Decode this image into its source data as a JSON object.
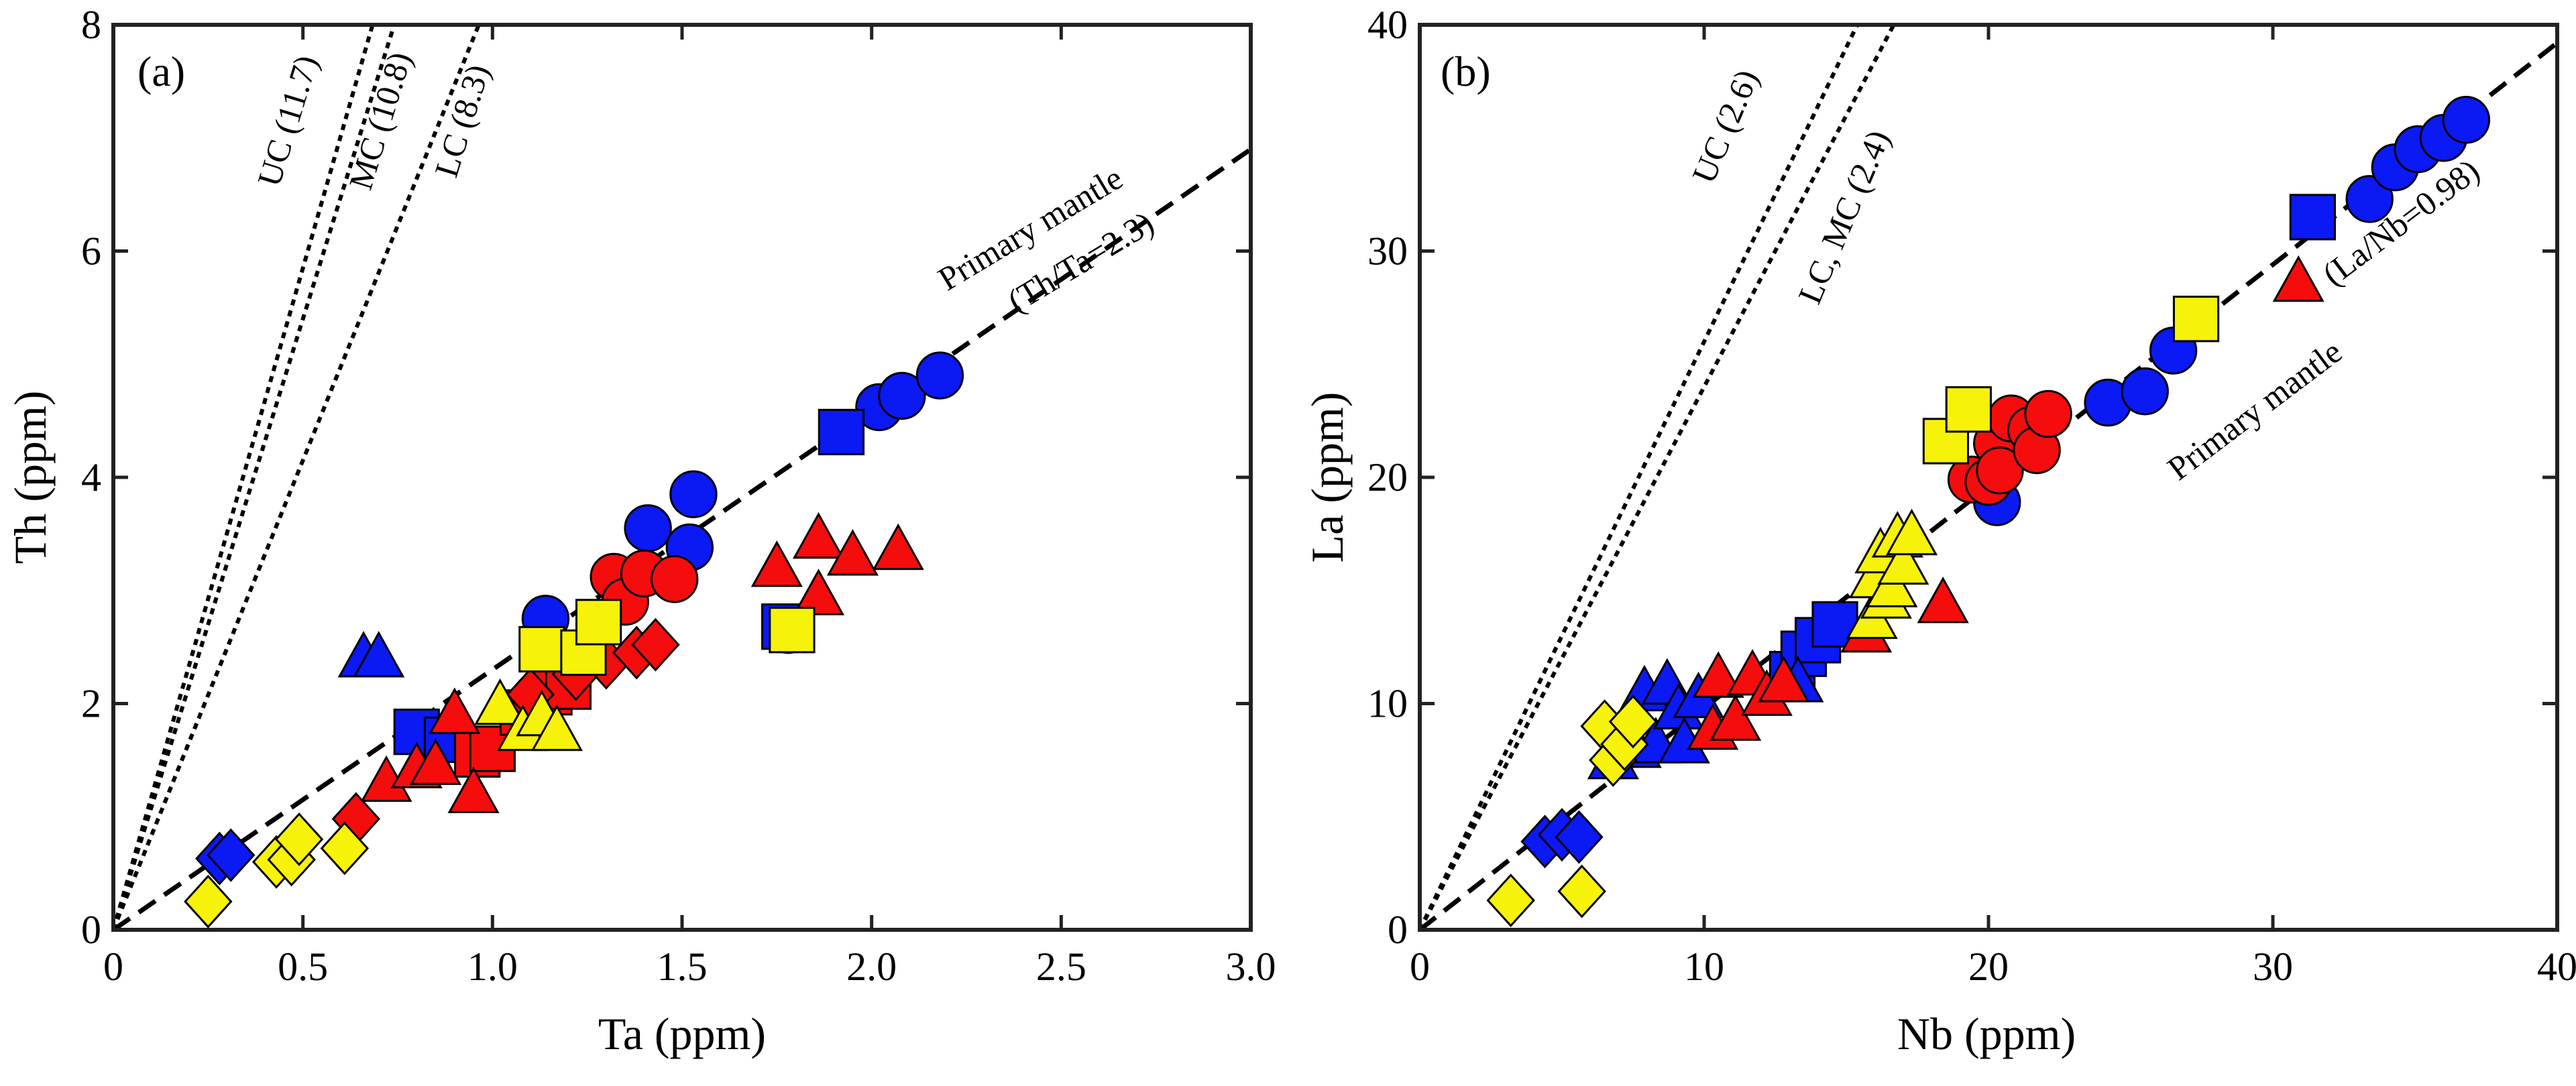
{
  "colors": {
    "blue": "#0b19f5",
    "red": "#f50d0d",
    "yellow": "#f7f20a",
    "outline": "#000000"
  },
  "chart_data": [
    {
      "type": "scatter",
      "panel_label": "(a)",
      "xlabel": "Ta (ppm)",
      "ylabel": "Th (ppm)",
      "xlim": [
        0,
        3.0
      ],
      "ylim": [
        0,
        8
      ],
      "xticks": [
        0,
        0.5,
        1.0,
        1.5,
        2.0,
        2.5,
        3.0
      ],
      "xtick_labels": [
        "0",
        "0.5",
        "1.0",
        "1.5",
        "2.0",
        "2.5",
        "3.0"
      ],
      "yticks": [
        0,
        2,
        4,
        6,
        8
      ],
      "ytick_labels": [
        "0",
        "2",
        "4",
        "6",
        "8"
      ],
      "grid": false,
      "reference_lines": [
        {
          "label": "UC (11.7)",
          "slope": 11.7,
          "style": "dotted"
        },
        {
          "label": "MC (10.8)",
          "slope": 10.8,
          "style": "dotted"
        },
        {
          "label": "LC (8.3)",
          "slope": 8.3,
          "style": "dotted"
        },
        {
          "label": "Primary mantle",
          "label2": "(Th/Ta=2.3)",
          "slope": 2.3,
          "style": "dashed"
        }
      ],
      "series": [
        {
          "marker": "circle",
          "color": "blue",
          "points": [
            [
              1.14,
              2.75
            ],
            [
              1.41,
              3.55
            ],
            [
              1.53,
              3.85
            ],
            [
              1.52,
              3.38
            ],
            [
              1.78,
              2.65
            ],
            [
              2.02,
              4.62
            ],
            [
              2.08,
              4.72
            ],
            [
              2.18,
              4.9
            ]
          ]
        },
        {
          "marker": "square",
          "color": "blue",
          "points": [
            [
              0.8,
              1.75
            ],
            [
              0.88,
              1.68
            ],
            [
              1.77,
              2.68
            ],
            [
              1.92,
              4.4
            ]
          ]
        },
        {
          "marker": "triangle",
          "color": "blue",
          "points": [
            [
              0.66,
              2.4
            ],
            [
              0.7,
              2.4
            ]
          ]
        },
        {
          "marker": "diamond",
          "color": "blue",
          "points": [
            [
              0.28,
              0.63
            ],
            [
              0.31,
              0.66
            ]
          ]
        },
        {
          "marker": "circle",
          "color": "red",
          "points": [
            [
              1.32,
              3.12
            ],
            [
              1.35,
              2.9
            ],
            [
              1.4,
              3.15
            ],
            [
              1.48,
              3.1
            ]
          ]
        },
        {
          "marker": "square",
          "color": "red",
          "points": [
            [
              0.96,
              1.55
            ],
            [
              1.0,
              1.6
            ],
            [
              1.08,
              1.92
            ],
            [
              1.15,
              2.1
            ],
            [
              1.2,
              2.15
            ]
          ]
        },
        {
          "marker": "triangle",
          "color": "red",
          "points": [
            [
              0.72,
              1.3
            ],
            [
              0.8,
              1.42
            ],
            [
              0.85,
              1.45
            ],
            [
              0.9,
              1.9
            ],
            [
              0.95,
              1.2
            ],
            [
              1.75,
              3.2
            ],
            [
              1.86,
              3.45
            ],
            [
              1.86,
              2.95
            ],
            [
              1.95,
              3.3
            ],
            [
              2.07,
              3.35
            ]
          ]
        },
        {
          "marker": "diamond",
          "color": "red",
          "points": [
            [
              0.64,
              0.98
            ],
            [
              1.1,
              2.08
            ],
            [
              1.22,
              2.26
            ],
            [
              1.3,
              2.36
            ],
            [
              1.38,
              2.45
            ],
            [
              1.43,
              2.52
            ]
          ]
        },
        {
          "marker": "square",
          "color": "yellow",
          "points": [
            [
              1.13,
              2.48
            ],
            [
              1.24,
              2.45
            ],
            [
              1.28,
              2.72
            ],
            [
              1.79,
              2.65
            ]
          ]
        },
        {
          "marker": "triangle",
          "color": "yellow",
          "points": [
            [
              1.02,
              1.98
            ],
            [
              1.08,
              1.75
            ],
            [
              1.13,
              1.88
            ],
            [
              1.17,
              1.75
            ]
          ]
        },
        {
          "marker": "diamond",
          "color": "yellow",
          "points": [
            [
              0.25,
              0.25
            ],
            [
              0.43,
              0.6
            ],
            [
              0.47,
              0.62
            ],
            [
              0.49,
              0.8
            ],
            [
              0.61,
              0.72
            ]
          ]
        }
      ]
    },
    {
      "type": "scatter",
      "panel_label": "(b)",
      "xlabel": "Nb (ppm)",
      "ylabel": "La (ppm)",
      "xlim": [
        0,
        40
      ],
      "ylim": [
        0,
        40
      ],
      "xticks": [
        0,
        10,
        20,
        30,
        40
      ],
      "xtick_labels": [
        "0",
        "10",
        "20",
        "30",
        "40"
      ],
      "yticks": [
        0,
        10,
        20,
        30,
        40
      ],
      "ytick_labels": [
        "0",
        "10",
        "20",
        "30",
        "40"
      ],
      "grid": false,
      "reference_lines": [
        {
          "label": "UC (2.6)",
          "slope": 2.6,
          "style": "dotted"
        },
        {
          "label": "LC, MC (2.4)",
          "slope": 2.4,
          "style": "dotted"
        },
        {
          "label": "Primary mantle",
          "label2": "(La/Nb=0.98)",
          "slope": 0.98,
          "style": "dashed"
        }
      ],
      "series": [
        {
          "marker": "circle",
          "color": "blue",
          "points": [
            [
              20.3,
              18.9
            ],
            [
              24.2,
              23.3
            ],
            [
              25.5,
              23.8
            ],
            [
              26.5,
              25.6
            ],
            [
              33.4,
              32.3
            ],
            [
              34.3,
              33.7
            ],
            [
              35.1,
              34.5
            ],
            [
              36.0,
              35.0
            ],
            [
              36.8,
              35.8
            ]
          ]
        },
        {
          "marker": "square",
          "color": "blue",
          "points": [
            [
              13.1,
              11.3
            ],
            [
              13.5,
              12.2
            ],
            [
              14.0,
              12.8
            ],
            [
              14.6,
              13.5
            ],
            [
              31.4,
              31.5
            ]
          ]
        },
        {
          "marker": "triangle",
          "color": "blue",
          "points": [
            [
              6.8,
              7.5
            ],
            [
              7.6,
              8.0
            ],
            [
              7.9,
              10.5
            ],
            [
              8.3,
              8.2
            ],
            [
              8.7,
              10.8
            ],
            [
              9.1,
              9.7
            ],
            [
              9.3,
              8.2
            ],
            [
              9.8,
              10.2
            ],
            [
              13.3,
              10.9
            ]
          ]
        },
        {
          "marker": "diamond",
          "color": "blue",
          "points": [
            [
              4.4,
              3.9
            ],
            [
              5.0,
              4.2
            ],
            [
              5.6,
              4.1
            ]
          ]
        },
        {
          "marker": "circle",
          "color": "red",
          "points": [
            [
              19.4,
              19.9
            ],
            [
              20.0,
              19.8
            ],
            [
              20.3,
              21.5
            ],
            [
              20.4,
              20.3
            ],
            [
              20.8,
              22.6
            ],
            [
              21.5,
              22.1
            ],
            [
              21.7,
              21.2
            ],
            [
              22.1,
              22.8
            ]
          ]
        },
        {
          "marker": "triangle",
          "color": "red",
          "points": [
            [
              10.3,
              8.8
            ],
            [
              10.5,
              11.1
            ],
            [
              11.1,
              9.2
            ],
            [
              11.7,
              11.2
            ],
            [
              12.2,
              10.3
            ],
            [
              12.8,
              10.9
            ],
            [
              15.7,
              13.1
            ],
            [
              18.4,
              14.4
            ],
            [
              30.9,
              28.6
            ]
          ]
        },
        {
          "marker": "square",
          "color": "yellow",
          "points": [
            [
              18.5,
              21.6
            ],
            [
              19.3,
              23.0
            ],
            [
              27.3,
              27.0
            ]
          ]
        },
        {
          "marker": "triangle",
          "color": "yellow",
          "points": [
            [
              15.9,
              13.7
            ],
            [
              16.0,
              15.5
            ],
            [
              16.2,
              16.6
            ],
            [
              16.4,
              14.6
            ],
            [
              16.6,
              15.1
            ],
            [
              16.8,
              17.3
            ],
            [
              17.0,
              16.1
            ],
            [
              17.3,
              17.4
            ]
          ]
        },
        {
          "marker": "diamond",
          "color": "yellow",
          "points": [
            [
              3.2,
              1.3
            ],
            [
              5.7,
              1.7
            ],
            [
              6.5,
              9.0
            ],
            [
              6.8,
              7.5
            ],
            [
              7.2,
              8.2
            ],
            [
              7.5,
              9.2
            ]
          ]
        }
      ]
    }
  ]
}
